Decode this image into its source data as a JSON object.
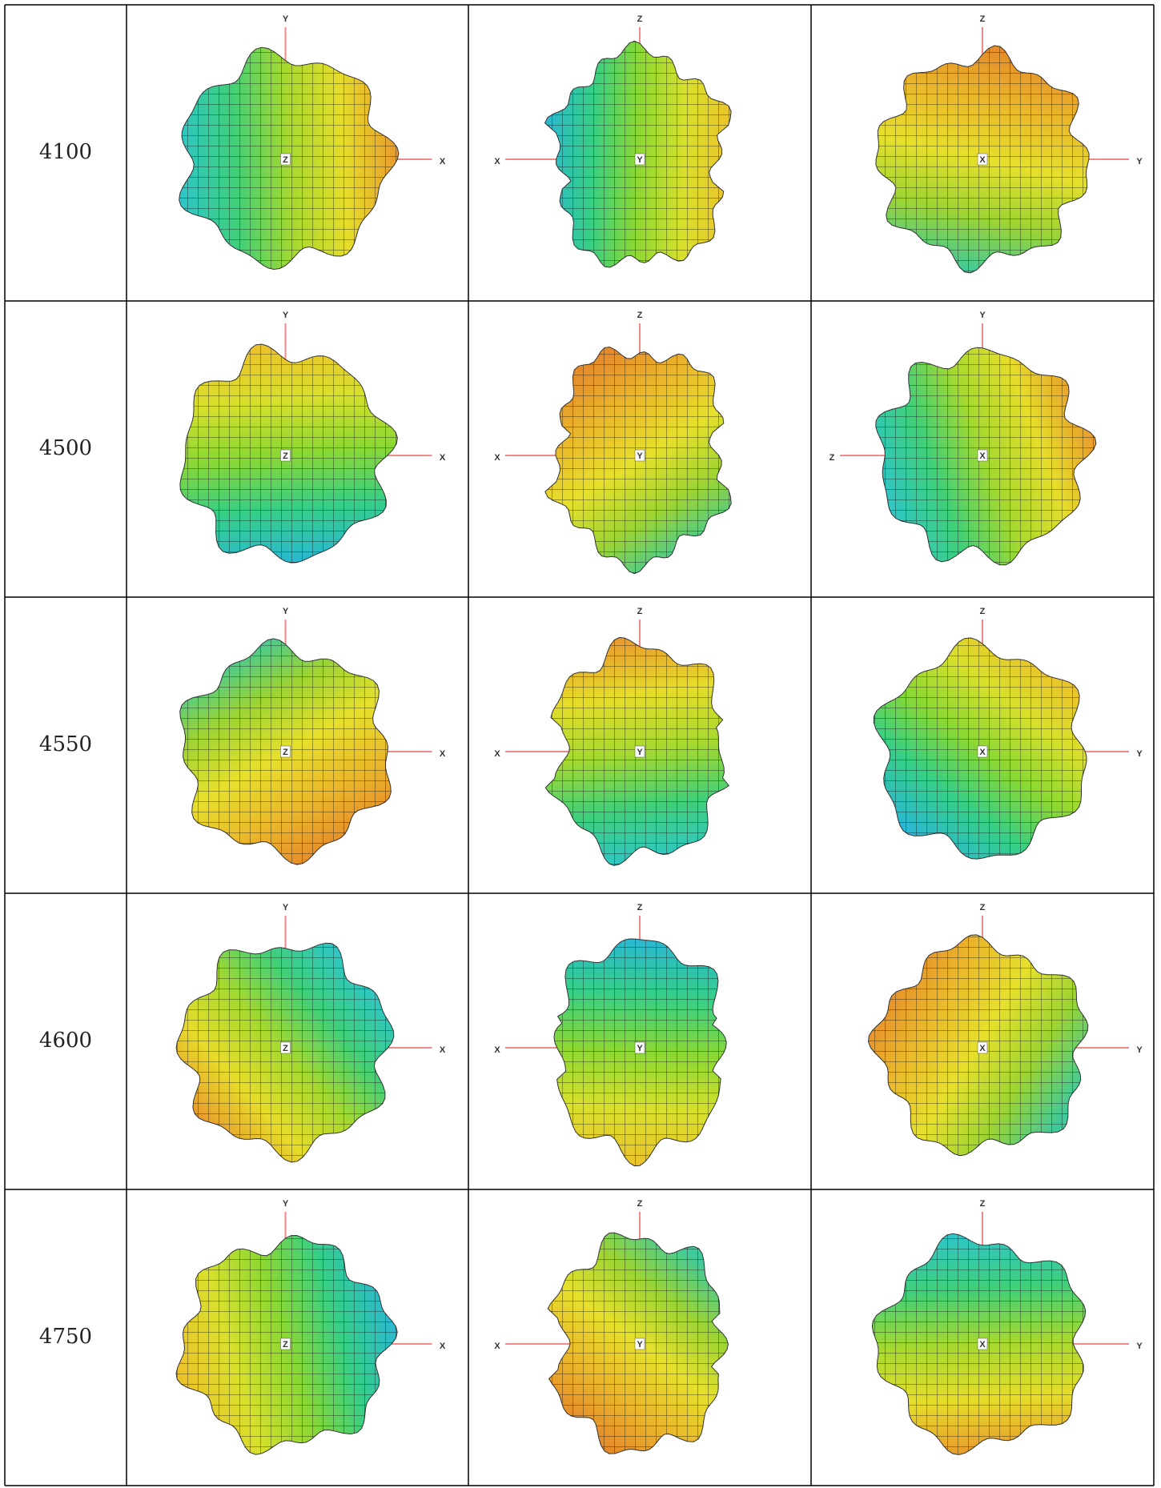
{
  "rows": [
    {
      "label": "4100",
      "views": [
        {
          "top": "Y",
          "right": "X",
          "center": "Z"
        },
        {
          "top": "Z",
          "left": "X",
          "center": "Y"
        },
        {
          "top": "Z",
          "right": "Y",
          "center": "X"
        }
      ]
    },
    {
      "label": "4500",
      "views": [
        {
          "top": "Y",
          "right": "X",
          "center": "Z"
        },
        {
          "top": "Z",
          "left": "X",
          "center": "Y"
        },
        {
          "top": "Y",
          "left": "Z",
          "center": "X"
        }
      ]
    },
    {
      "label": "4550",
      "views": [
        {
          "top": "Y",
          "right": "X",
          "center": "Z"
        },
        {
          "top": "Z",
          "left": "X",
          "center": "Y"
        },
        {
          "top": "Z",
          "right": "Y",
          "center": "X"
        }
      ]
    },
    {
      "label": "4600",
      "views": [
        {
          "top": "Y",
          "right": "X",
          "center": "Z"
        },
        {
          "top": "Z",
          "left": "X",
          "center": "Y"
        },
        {
          "top": "Z",
          "right": "Y",
          "center": "X"
        }
      ]
    },
    {
      "label": "4750",
      "views": [
        {
          "top": "Y",
          "right": "X",
          "center": "Z"
        },
        {
          "top": "Z",
          "left": "X",
          "center": "Y"
        },
        {
          "top": "Z",
          "right": "Y",
          "center": "X"
        }
      ]
    }
  ]
}
